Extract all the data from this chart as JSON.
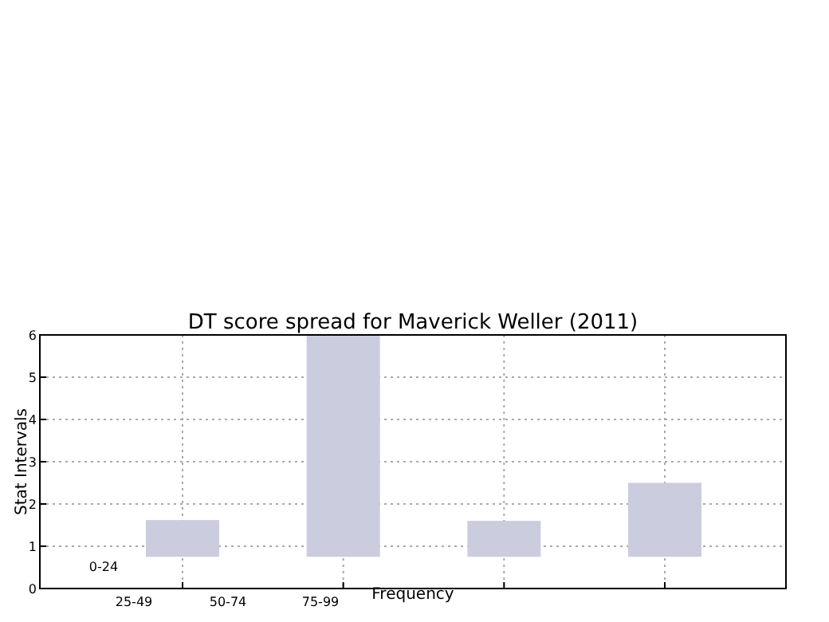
{
  "chart_data": {
    "type": "bar",
    "title": "DT score spread for Maverick Weller (2011)",
    "xlabel": "Frequency",
    "ylabel": "Stat Intervals",
    "categories": [
      null,
      null,
      null,
      null
    ],
    "values": [
      0.87,
      5.25,
      0.85,
      1.75
    ],
    "base": [
      0.75,
      0.75,
      0.75,
      0.75
    ],
    "color": "#ccccdf",
    "annotations": [
      "0-24",
      "25-49",
      "50-74",
      "75-99"
    ],
    "ylim": [
      0,
      6
    ],
    "yticks": [
      0,
      1,
      2,
      3,
      4,
      5,
      6
    ],
    "grid": true
  }
}
